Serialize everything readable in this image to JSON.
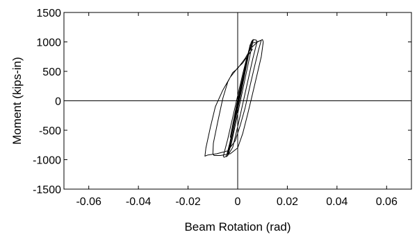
{
  "chart_data": {
    "type": "line",
    "title": "",
    "xlabel": "Beam Rotation (rad)",
    "ylabel": "Moment (kips-in)",
    "xlim": [
      -0.07,
      0.07
    ],
    "ylim": [
      -1500,
      1500
    ],
    "x_ticks": [
      -0.06,
      -0.04,
      -0.02,
      0,
      0.02,
      0.04,
      0.06
    ],
    "x_tick_labels": [
      "-0.06",
      "-0.04",
      "-0.02",
      "0",
      "0.02",
      "0.04",
      "0.06"
    ],
    "y_ticks": [
      -1500,
      -1000,
      -500,
      0,
      500,
      1000,
      1500
    ],
    "y_tick_labels": [
      "-1500",
      "-1000",
      "-500",
      "0",
      "500",
      "1000",
      "1500"
    ],
    "grid": false,
    "zero_lines": true,
    "series": [
      {
        "points": [
          [
            0,
            0
          ],
          [
            0.0008,
            150
          ],
          [
            0.0015,
            300
          ],
          [
            0.0008,
            120
          ],
          [
            0,
            -20
          ],
          [
            -0.0008,
            -180
          ],
          [
            -0.0015,
            -320
          ],
          [
            -0.0007,
            -150
          ],
          [
            0,
            0
          ],
          [
            0.0012,
            250
          ],
          [
            0.0025,
            480
          ],
          [
            0.0035,
            640
          ],
          [
            0.0022,
            400
          ],
          [
            0.0008,
            120
          ],
          [
            -0.0006,
            -120
          ],
          [
            -0.0018,
            -380
          ],
          [
            -0.003,
            -620
          ],
          [
            -0.0018,
            -360
          ],
          [
            -0.0004,
            -60
          ],
          [
            0.001,
            210
          ],
          [
            0.0025,
            480
          ],
          [
            0.004,
            760
          ],
          [
            0.005,
            950
          ],
          [
            0.0052,
            960
          ],
          [
            0.004,
            700
          ],
          [
            0.0025,
            380
          ],
          [
            0.001,
            60
          ],
          [
            -0.0005,
            -240
          ],
          [
            -0.002,
            -560
          ],
          [
            -0.0035,
            -840
          ],
          [
            -0.0042,
            -910
          ],
          [
            -0.003,
            -700
          ],
          [
            -0.0015,
            -380
          ],
          [
            0,
            -60
          ],
          [
            0.0015,
            260
          ],
          [
            0.003,
            580
          ],
          [
            0.0045,
            860
          ],
          [
            0.0055,
            1000
          ],
          [
            0.006,
            1030
          ],
          [
            0.0063,
            1040
          ],
          [
            0.005,
            780
          ],
          [
            0.0035,
            480
          ],
          [
            0.002,
            180
          ],
          [
            0.0008,
            -60
          ],
          [
            -0.0008,
            -380
          ],
          [
            -0.0025,
            -720
          ],
          [
            -0.004,
            -930
          ],
          [
            -0.0046,
            -950
          ],
          [
            -0.0032,
            -720
          ],
          [
            -0.0015,
            -380
          ],
          [
            0.0002,
            -40
          ],
          [
            0.002,
            330
          ],
          [
            0.0035,
            640
          ],
          [
            0.005,
            920
          ],
          [
            0.0063,
            1040
          ],
          [
            0.0075,
            1030
          ],
          [
            0.0078,
            1000
          ],
          [
            0.006,
            700
          ],
          [
            0.004,
            320
          ],
          [
            0.002,
            -60
          ],
          [
            0,
            -440
          ],
          [
            -0.002,
            -790
          ],
          [
            -0.004,
            -930
          ],
          [
            -0.0055,
            -960
          ],
          [
            -0.0058,
            -940
          ],
          [
            -0.004,
            -650
          ],
          [
            -0.002,
            -280
          ],
          [
            0,
            90
          ],
          [
            0.002,
            450
          ],
          [
            0.004,
            790
          ],
          [
            0.006,
            980
          ],
          [
            0.0078,
            1000
          ],
          [
            0.0095,
            1030
          ],
          [
            0.01,
            1040
          ],
          [
            0.0103,
            1000
          ],
          [
            0.0095,
            750
          ],
          [
            0.008,
            480
          ],
          [
            0.006,
            120
          ],
          [
            0.004,
            -230
          ],
          [
            0.002,
            -560
          ],
          [
            0,
            -800
          ],
          [
            -0.003,
            -900
          ],
          [
            -0.007,
            -930
          ],
          [
            -0.0095,
            -930
          ],
          [
            -0.01,
            -900
          ],
          [
            -0.0098,
            -720
          ],
          [
            -0.008,
            -350
          ],
          [
            -0.006,
            40
          ],
          [
            -0.004,
            320
          ],
          [
            -0.002,
            480
          ],
          [
            0,
            550
          ],
          [
            0.003,
            720
          ],
          [
            0.0055,
            900
          ],
          [
            0.008,
            1000
          ],
          [
            0.0095,
            1030
          ],
          [
            0.0085,
            880
          ],
          [
            0.007,
            620
          ],
          [
            0.005,
            260
          ],
          [
            0.003,
            -120
          ],
          [
            0.001,
            -420
          ],
          [
            -0.001,
            -680
          ],
          [
            -0.004,
            -850
          ],
          [
            -0.0085,
            -900
          ],
          [
            -0.012,
            -920
          ],
          [
            -0.0132,
            -940
          ],
          [
            -0.0128,
            -800
          ],
          [
            -0.011,
            -450
          ],
          [
            -0.009,
            -100
          ],
          [
            -0.006,
            180
          ],
          [
            -0.003,
            400
          ],
          [
            0,
            560
          ],
          [
            0.002,
            640
          ],
          [
            0.004,
            760
          ],
          [
            0.006,
            880
          ]
        ]
      }
    ]
  }
}
